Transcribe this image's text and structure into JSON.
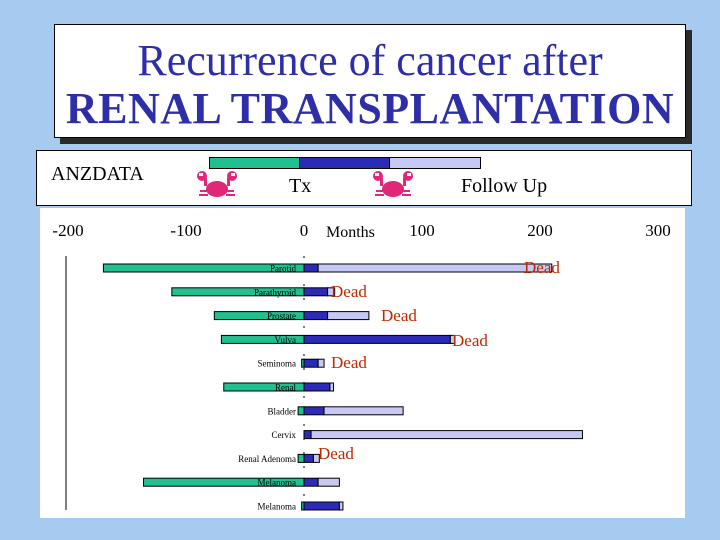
{
  "title": {
    "line1": "Recurrence of cancer after",
    "line2": "RENAL TRANSPLANTATION"
  },
  "legend": {
    "source": "ANZDATA",
    "tx_label": "Tx",
    "follow_up_label": "Follow Up",
    "icon": "crab-icon",
    "colors": {
      "pre_tx": "#20c090",
      "tx": "#2b2bb8",
      "follow_up": "#c8c8f4"
    }
  },
  "chart_data": {
    "type": "bar",
    "orientation": "horizontal-timeline",
    "xlabel": "Months",
    "xlim": [
      -200,
      300
    ],
    "xticks": [
      -200,
      -100,
      0,
      100,
      200,
      300
    ],
    "categories": [
      "Parotid",
      "Parathyroid",
      "Prostate",
      "Vulva",
      "Seminoma",
      "Renal",
      "Bladder",
      "Cervix",
      "Renal Adenoma",
      "Melanoma",
      "Melanoma"
    ],
    "series": [
      {
        "name": "pre_tx",
        "starts": [
          -170,
          -112,
          -76,
          -70,
          -2,
          -68,
          -5,
          0,
          -5,
          -136,
          -2
        ],
        "ends": [
          0,
          0,
          0,
          0,
          0,
          0,
          0,
          0,
          0,
          0,
          0
        ]
      },
      {
        "name": "tx",
        "starts": [
          0,
          0,
          0,
          0,
          0,
          0,
          0,
          0,
          0,
          0,
          0
        ],
        "ends": [
          12,
          20,
          20,
          124,
          12,
          22,
          17,
          6,
          8,
          12,
          30
        ]
      },
      {
        "name": "follow_up",
        "starts": [
          12,
          20,
          20,
          124,
          12,
          22,
          17,
          6,
          8,
          12,
          30
        ],
        "ends": [
          210,
          26,
          55,
          128,
          17,
          25,
          84,
          236,
          13,
          30,
          33
        ]
      }
    ],
    "annotations": [
      {
        "row": 0,
        "text": "Dead"
      },
      {
        "row": 1,
        "text": "Dead"
      },
      {
        "row": 2,
        "text": "Dead"
      },
      {
        "row": 3,
        "text": "Dead"
      },
      {
        "row": 4,
        "text": "Dead"
      },
      {
        "row": 8,
        "text": "Dead"
      }
    ],
    "annotation_color": "#c02800"
  }
}
